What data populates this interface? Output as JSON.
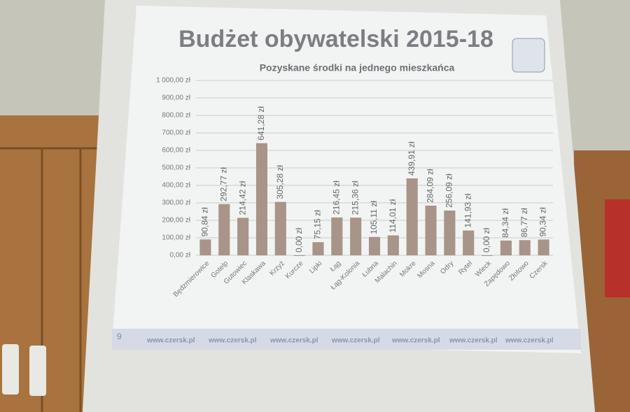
{
  "chart_data": {
    "type": "bar",
    "title": "Budżet obywatelski 2015-18",
    "subtitle": "Pozyskane środki na jednego mieszkańca",
    "categories": [
      "Będzmierowice",
      "Gotelp",
      "Gutowiec",
      "Klaskawa",
      "Krzyż",
      "Kurcze",
      "Lipki",
      "Łąg",
      "Łąg-Kolonia",
      "Łubna",
      "Malachin",
      "Mokre",
      "Mosna",
      "Odry",
      "Rytel",
      "Wieck",
      "Zapędowo",
      "Złotowo",
      "Czersk"
    ],
    "values": [
      90.84,
      292.77,
      214.42,
      641.28,
      305.28,
      0.0,
      75.15,
      216.45,
      215.36,
      105.11,
      114.01,
      439.91,
      284.09,
      256.09,
      141.93,
      0.0,
      84.34,
      86.77,
      90.34
    ],
    "value_labels": [
      "90,84 zł",
      "292,77 zł",
      "214,42 zł",
      "641,28 zł",
      "305,28 zł",
      "0,00 zł",
      "75,15 zł",
      "216,45 zł",
      "215,36 zł",
      "105,11 zł",
      "114,01 zł",
      "439,91 zł",
      "284,09 zł",
      "256,09 zł",
      "141,93 zł",
      "0,00 zł",
      "84,34 zł",
      "86,77 zł",
      "90,34 zł"
    ],
    "color": "#a89488",
    "ylim": [
      0,
      1000
    ],
    "yticks": [
      {
        "value": 0,
        "label": "0,00 zł"
      },
      {
        "value": 100,
        "label": "100,00 zł"
      },
      {
        "value": 200,
        "label": "200,00 zł"
      },
      {
        "value": 300,
        "label": "300,00 zł"
      },
      {
        "value": 400,
        "label": "400,00 zł"
      },
      {
        "value": 500,
        "label": "500,00 zł"
      },
      {
        "value": 600,
        "label": "600,00 zł"
      },
      {
        "value": 700,
        "label": "700,00 zł"
      },
      {
        "value": 800,
        "label": "800,00 zł"
      },
      {
        "value": 900,
        "label": "900,00 zł"
      },
      {
        "value": 1000,
        "label": "1 000,00 zł"
      }
    ],
    "grid": true
  },
  "slide": {
    "number": "9",
    "footer": "www.czersk.pl"
  }
}
